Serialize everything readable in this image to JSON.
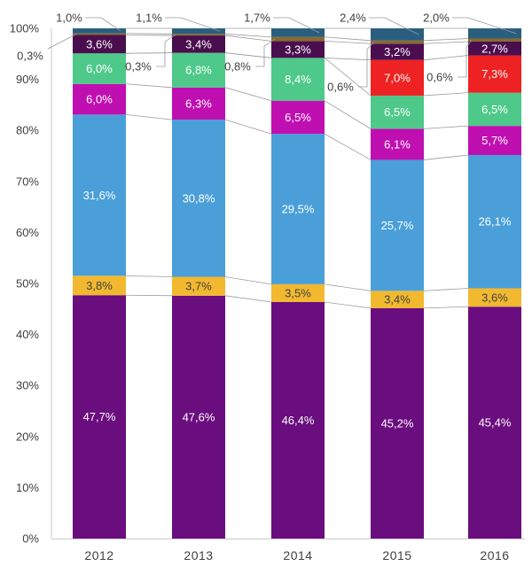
{
  "chart_data": {
    "type": "bar",
    "stacked": true,
    "categories": [
      "2012",
      "2013",
      "2014",
      "2015",
      "2016"
    ],
    "ylim": [
      0,
      100
    ],
    "y_ticks": [
      "0%",
      "10%",
      "20%",
      "30%",
      "40%",
      "50%",
      "60%",
      "70%",
      "80%",
      "90%",
      "100%"
    ],
    "grid": false,
    "legend": "none",
    "series": [
      {
        "color": "#6a0d7e",
        "values": [
          47.7,
          47.6,
          46.4,
          45.2,
          45.4
        ],
        "labels": [
          "47,7%",
          "47,6%",
          "46,4%",
          "45,2%",
          "45,4%"
        ]
      },
      {
        "color": "#f2b930",
        "values": [
          3.8,
          3.7,
          3.5,
          3.4,
          3.6
        ],
        "labels": [
          "3,8%",
          "3,7%",
          "3,5%",
          "3,4%",
          "3,6%"
        ]
      },
      {
        "color": "#4a9fd8",
        "values": [
          31.6,
          30.8,
          29.5,
          25.7,
          26.1
        ],
        "labels": [
          "31,6%",
          "30,8%",
          "29,5%",
          "25,7%",
          "26,1%"
        ]
      },
      {
        "color": "#c00fb0",
        "values": [
          6.0,
          6.3,
          6.5,
          6.1,
          5.7
        ],
        "labels": [
          "6,0%",
          "6,3%",
          "6,5%",
          "6,1%",
          "5,7%"
        ]
      },
      {
        "color": "#4ec98a",
        "values": [
          6.0,
          6.8,
          8.4,
          6.5,
          6.5
        ],
        "labels": [
          "6,0%",
          "6,8%",
          "8,4%",
          "6,5%",
          "6,5%"
        ]
      },
      {
        "color": "#ee2222",
        "values": [
          0,
          0,
          0,
          7.0,
          7.3
        ],
        "labels": [
          "",
          "",
          "",
          "7,0%",
          "7,3%"
        ]
      },
      {
        "color": "#4a0e4e",
        "values": [
          3.6,
          3.4,
          3.3,
          3.2,
          2.7
        ],
        "labels": [
          "3,6%",
          "3,4%",
          "3,3%",
          "3,2%",
          "2,7%"
        ]
      },
      {
        "color": "#8a6a2a",
        "values": [
          0.3,
          0.3,
          0.8,
          0.6,
          0.6
        ],
        "labels": [
          "0,3%",
          "0,3%",
          "0,8%",
          "0,6%",
          "0,6%"
        ]
      },
      {
        "color": "#2a5e7e",
        "values": [
          1.0,
          1.1,
          1.7,
          2.4,
          2.0
        ],
        "labels": [
          "1,0%",
          "1,1%",
          "1,7%",
          "2,4%",
          "2,0%"
        ]
      }
    ]
  }
}
